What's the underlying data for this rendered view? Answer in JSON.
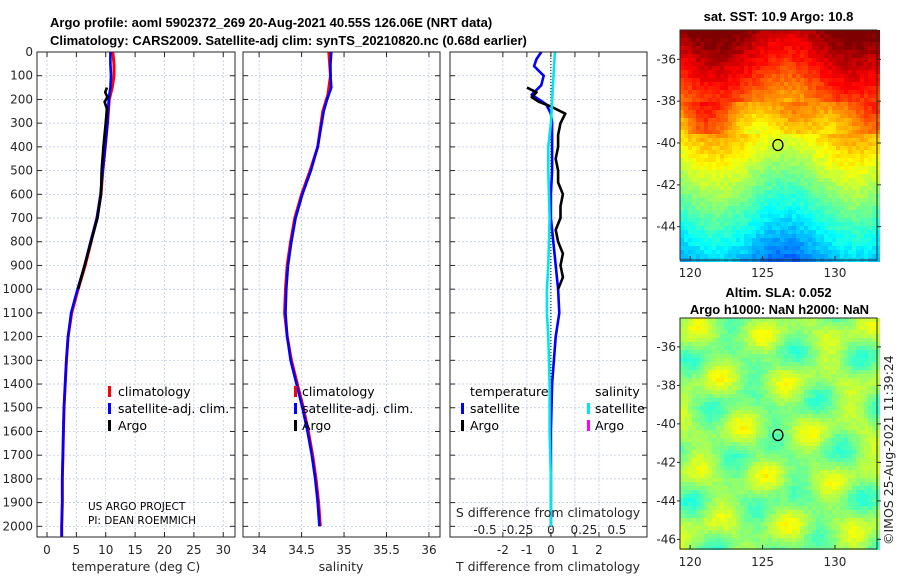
{
  "title_line1": "Argo profile: aoml 5902372_269 20-Aug-2021 40.55S 126.06E (NRT data)",
  "title_line2": "Climatology: CARS2009. Satellite-adj clim: synTS_20210820.nc (0.68d earlier)",
  "credit": "US ARGO PROJECT",
  "pi": "PI: DEAN ROEMMICH",
  "copyright": "©IMOS 25-Aug-2021 11:39:24",
  "colors": {
    "climatology": "#ff0000",
    "satellite": "#0000ff",
    "argo": "#000000",
    "sal_satellite": "#00e5ee",
    "sal_argo": "#ff00ff"
  },
  "legend": {
    "climatology": "climatology",
    "satellite_adj": "satellite-adj. clim.",
    "argo": "Argo",
    "temperature": "temperature",
    "salinity": "salinity",
    "satellite": "satellite"
  },
  "chart_data": [
    {
      "type": "line",
      "name": "temperature-profile",
      "xlabel": "temperature (deg C)",
      "ylabel": "",
      "xlim": [
        -1.7,
        32
      ],
      "ylim": [
        2045,
        0
      ],
      "xticks": [
        0,
        5,
        10,
        15,
        20,
        25,
        30
      ],
      "yticks": [
        0,
        100,
        200,
        300,
        400,
        500,
        600,
        700,
        800,
        900,
        1000,
        1100,
        1200,
        1300,
        1400,
        1500,
        1600,
        1700,
        1800,
        1900,
        2000
      ],
      "series": [
        {
          "name": "climatology",
          "depth": [
            0,
            50,
            100,
            150,
            200,
            300,
            400,
            500,
            600,
            700,
            800,
            900,
            1000,
            1100,
            1200,
            1300,
            1400,
            1500,
            1600,
            1700,
            1800,
            1900,
            2000,
            2045
          ],
          "values": [
            11.2,
            11.4,
            11.4,
            11.1,
            10.6,
            10.3,
            9.9,
            9.5,
            9.2,
            8.5,
            7.5,
            6.5,
            5.3,
            4.2,
            3.6,
            3.3,
            3.1,
            2.9,
            2.8,
            2.7,
            2.6,
            2.6,
            2.5,
            2.5
          ]
        },
        {
          "name": "satellite-adj. clim.",
          "depth": [
            0,
            50,
            100,
            150,
            200,
            300,
            400,
            500,
            600,
            700,
            800,
            900,
            1000,
            1100,
            1200,
            1300,
            1400,
            1500,
            1600,
            1700,
            1800,
            1900,
            2000,
            2045
          ],
          "values": [
            10.8,
            10.8,
            10.9,
            10.8,
            10.5,
            10.3,
            9.9,
            9.5,
            9.1,
            8.5,
            7.4,
            6.4,
            5.2,
            4.1,
            3.6,
            3.3,
            3.1,
            2.9,
            2.8,
            2.7,
            2.6,
            2.6,
            2.5,
            2.5
          ]
        },
        {
          "name": "Argo",
          "depth": [
            150,
            170,
            190,
            210,
            240,
            270,
            300,
            400,
            500,
            600,
            700,
            800,
            900,
            1000
          ],
          "values": [
            10.2,
            9.9,
            10.3,
            9.8,
            10.2,
            10.1,
            10.0,
            9.6,
            9.3,
            9.2,
            8.6,
            7.5,
            6.4,
            5.3
          ]
        }
      ]
    },
    {
      "type": "line",
      "name": "salinity-profile",
      "xlabel": "salinity",
      "xlim": [
        33.81,
        36.13
      ],
      "ylim": [
        2045,
        0
      ],
      "xticks": [
        34,
        34.5,
        35,
        35.5,
        36
      ],
      "series": [
        {
          "name": "climatology",
          "depth": [
            0,
            100,
            180,
            250,
            400,
            500,
            600,
            700,
            800,
            900,
            1000,
            1100,
            1200,
            1300,
            1400,
            1500,
            1600,
            1700,
            1800,
            1900,
            2000
          ],
          "values": [
            34.82,
            34.84,
            34.81,
            34.75,
            34.69,
            34.6,
            34.5,
            34.42,
            34.37,
            34.33,
            34.31,
            34.3,
            34.33,
            34.38,
            34.45,
            34.52,
            34.58,
            34.63,
            34.67,
            34.7,
            34.72
          ]
        },
        {
          "name": "satellite-adj. clim.",
          "depth": [
            0,
            50,
            100,
            150,
            200,
            250,
            400,
            500,
            600,
            700,
            800,
            900,
            1000,
            1100,
            1200,
            1300,
            1400,
            1500,
            1600,
            1700,
            1800,
            1900,
            2000
          ],
          "values": [
            34.85,
            34.84,
            34.84,
            34.85,
            34.8,
            34.76,
            34.69,
            34.61,
            34.51,
            34.43,
            34.38,
            34.34,
            34.32,
            34.31,
            34.33,
            34.37,
            34.44,
            34.51,
            34.57,
            34.62,
            34.66,
            34.69,
            34.71
          ]
        }
      ]
    },
    {
      "type": "line",
      "name": "difference-profile",
      "xlabel": "T difference from climatology",
      "xlabel2": "S difference from climatology",
      "xlim": [
        -4.2,
        4.0
      ],
      "ylim": [
        2045,
        0
      ],
      "xticks": [
        -2,
        -1,
        0,
        1,
        2
      ],
      "xticks2": [
        -0.5,
        -0.25,
        0,
        0.25,
        0.5
      ],
      "series": [
        {
          "name": "temperature satellite",
          "depth": [
            0,
            30,
            60,
            100,
            140,
            180,
            220,
            260,
            300,
            400,
            500,
            600,
            700,
            800,
            900,
            1000,
            1100,
            1200,
            1400,
            1600,
            1800,
            2000
          ],
          "values": [
            -0.4,
            -0.6,
            -0.7,
            -0.3,
            -0.4,
            -0.8,
            -0.2,
            0.0,
            0.05,
            0.05,
            0.05,
            0.0,
            0.0,
            0.1,
            0.2,
            0.3,
            0.35,
            0.2,
            0.05,
            0.0,
            0.0,
            0.0
          ]
        },
        {
          "name": "temperature Argo",
          "depth": [
            150,
            170,
            190,
            210,
            230,
            260,
            300,
            350,
            400,
            450,
            500,
            550,
            600,
            650,
            700,
            750,
            800,
            850,
            900,
            950,
            1000
          ],
          "values": [
            -1.0,
            -0.6,
            -0.8,
            -0.5,
            0.0,
            0.6,
            0.4,
            0.3,
            0.3,
            0.2,
            0.3,
            0.3,
            0.5,
            0.4,
            0.4,
            0.2,
            0.3,
            0.5,
            0.4,
            0.5,
            0.3
          ]
        },
        {
          "name": "salinity satellite",
          "depth": [
            0,
            100,
            200,
            300,
            400,
            500,
            700,
            900,
            1000,
            1100,
            1200,
            1400,
            1600,
            1800,
            2000
          ],
          "values": [
            0.03,
            0.02,
            0.01,
            0.0,
            -0.02,
            -0.02,
            -0.01,
            -0.02,
            -0.03,
            -0.03,
            -0.02,
            -0.01,
            -0.01,
            0.0,
            0.0
          ]
        }
      ]
    },
    {
      "type": "heatmap",
      "name": "sst-map",
      "title": "sat. SST: 10.9 Argo: 10.8",
      "xlim": [
        119.3,
        132.9
      ],
      "ylim": [
        -46.5,
        -34.6
      ],
      "xticks": [
        120,
        125,
        130
      ],
      "yticks": [
        -36,
        -38,
        -40,
        -42,
        -44,
        -46
      ],
      "float_position": [
        126.06,
        -40.55
      ]
    },
    {
      "type": "heatmap",
      "name": "sla-map",
      "title": "Altim. SLA: 0.052",
      "subtitle": "Argo h1000: NaN h2000: NaN",
      "xlim": [
        119.3,
        132.9
      ],
      "ylim": [
        -46.5,
        -34.5
      ],
      "xticks": [
        120,
        125,
        130
      ],
      "yticks": [
        -36,
        -38,
        -40,
        -42,
        -44,
        -46
      ],
      "float_position": [
        126.06,
        -40.55
      ]
    }
  ]
}
